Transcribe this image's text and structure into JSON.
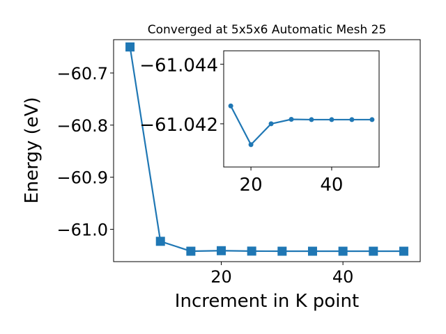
{
  "chart_data": [
    {
      "type": "line",
      "title": "Converged at 5x5x6 Automatic Mesh 25",
      "xlabel": "Increment in K point",
      "ylabel": "Energy (eV)",
      "xlim": [
        2.3,
        52.7
      ],
      "ylim": [
        -61.062,
        -60.636
      ],
      "xticks": [
        20,
        40
      ],
      "yticks": [
        -60.7,
        -60.8,
        -60.9,
        -61.0
      ],
      "xtick_labels": [
        "20",
        "40"
      ],
      "ytick_labels": [
        "−60.7",
        "−60.8",
        "−60.9",
        "−61.0"
      ],
      "grid": false,
      "marker": "square",
      "color": "#1f77b4",
      "series": [
        {
          "x": [
            5,
            10,
            15,
            20,
            25,
            30,
            35,
            40,
            45,
            50
          ],
          "y": [
            -60.65,
            -61.023,
            -61.042,
            -61.041,
            -61.0418,
            -61.042,
            -61.042,
            -61.042,
            -61.042,
            -61.042
          ]
        }
      ]
    },
    {
      "type": "line",
      "inset": true,
      "xlim": [
        13.25,
        51.75
      ],
      "ylim": [
        -61.04055,
        -61.04445
      ],
      "xticks": [
        20,
        40
      ],
      "yticks": [
        -61.044,
        -61.042
      ],
      "xtick_labels": [
        "20",
        "40"
      ],
      "ytick_labels": [
        "−61.044",
        "−61.042"
      ],
      "grid": false,
      "marker": "circle",
      "color": "#1f77b4",
      "series": [
        {
          "x": [
            15,
            20,
            25,
            30,
            35,
            40,
            45,
            50
          ],
          "y": [
            -61.0426,
            -61.0413,
            -61.042,
            -61.04215,
            -61.04214,
            -61.04214,
            -61.04214,
            -61.04214
          ]
        }
      ]
    }
  ]
}
